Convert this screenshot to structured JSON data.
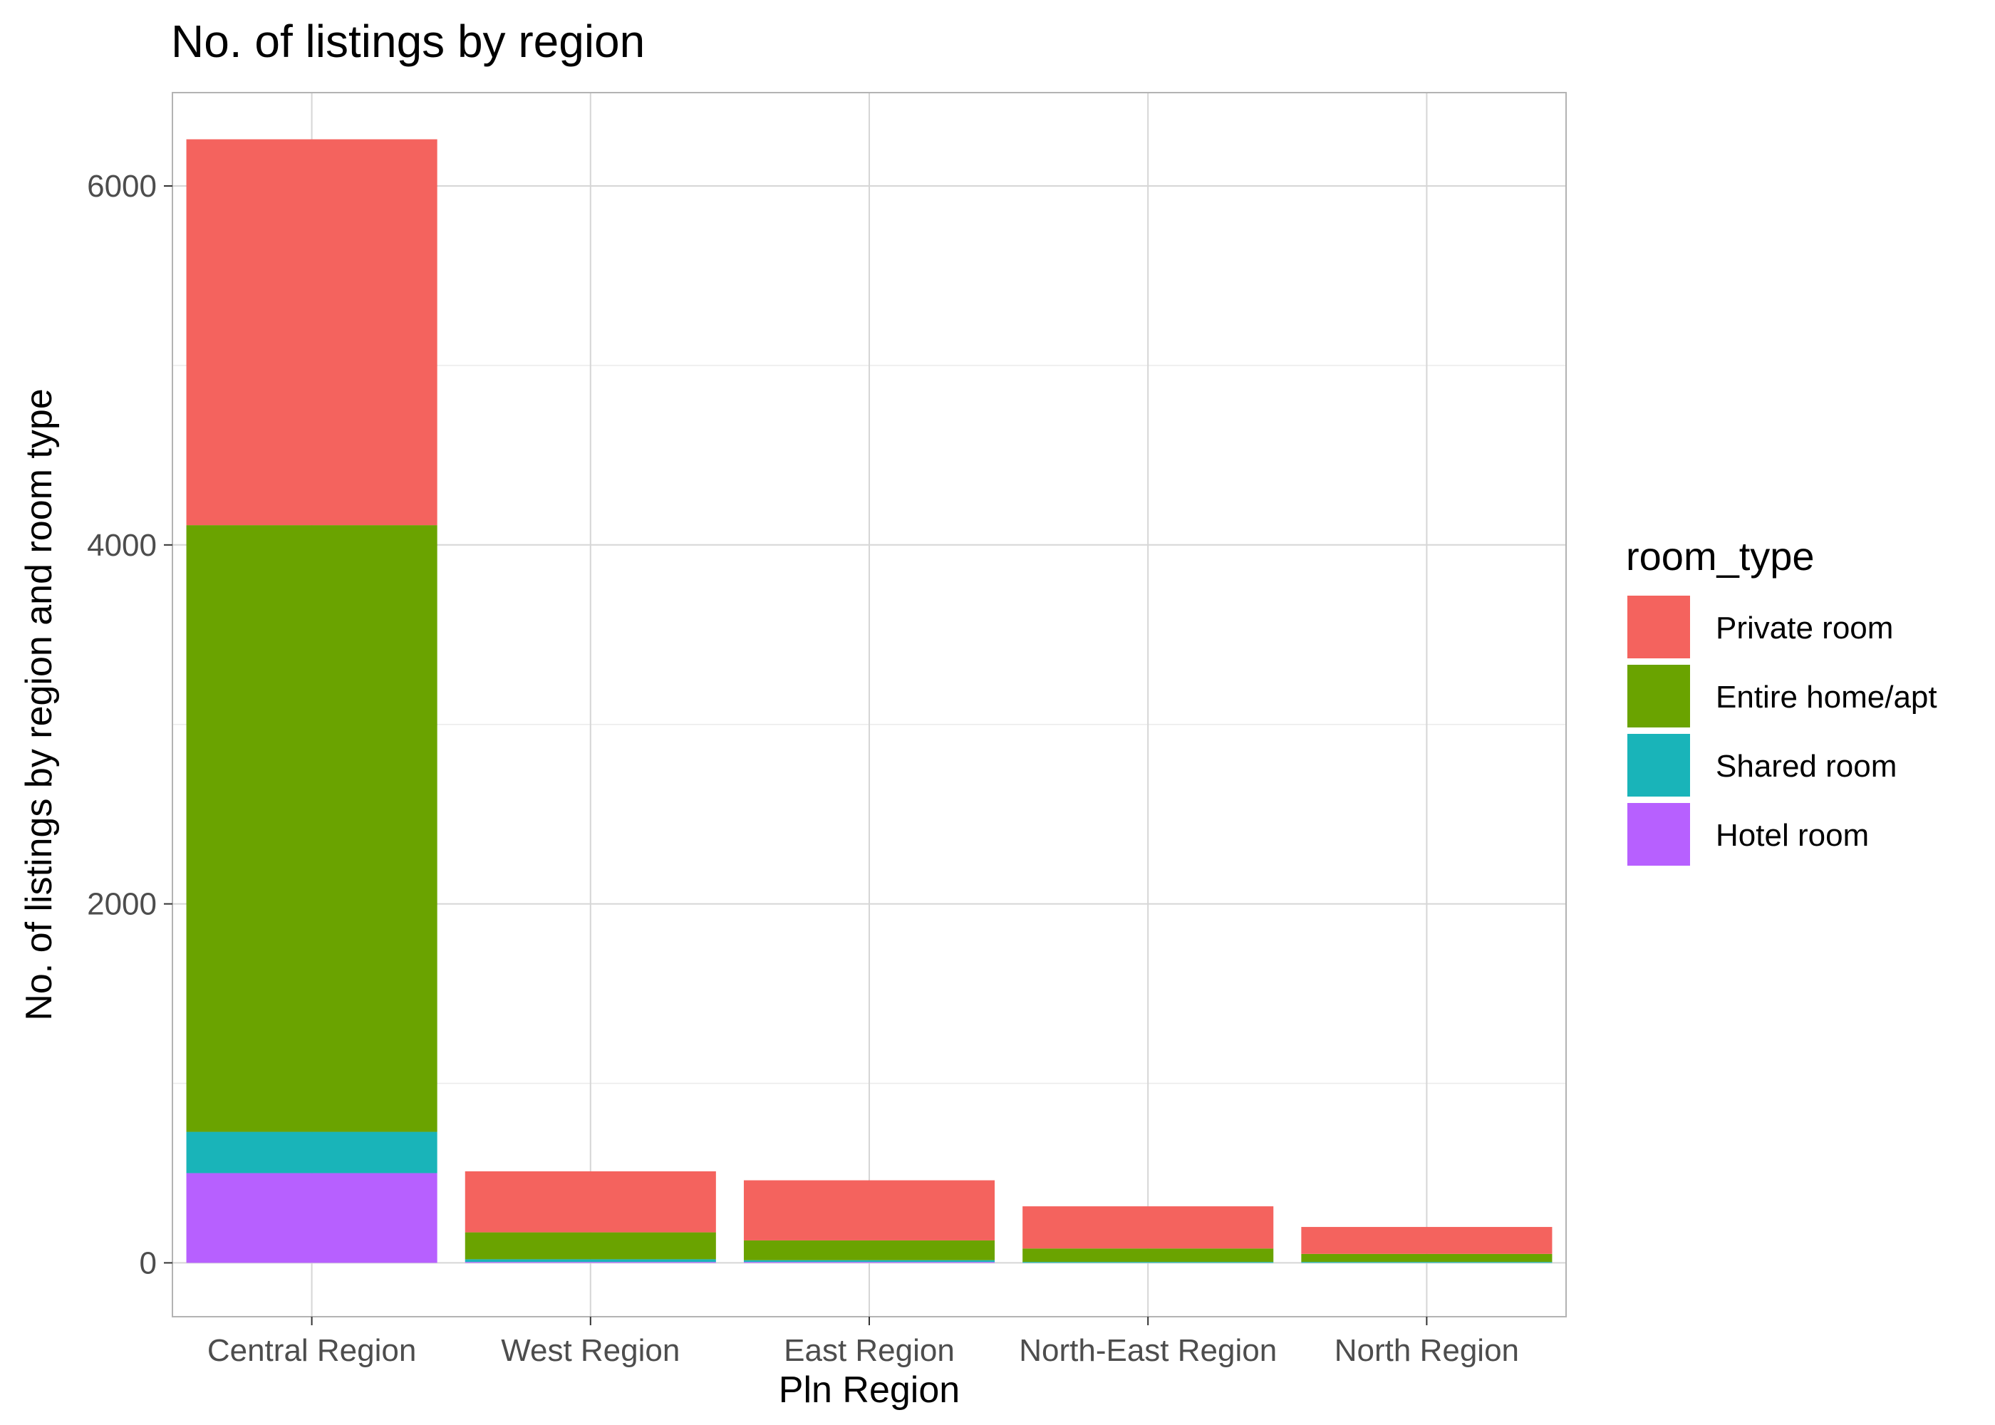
{
  "chart_data": {
    "type": "bar",
    "stacked": true,
    "title": "No. of listings by region",
    "xlabel": "Pln Region",
    "ylabel": "No. of listings by region and room type",
    "categories": [
      "Central Region",
      "West Region",
      "East Region",
      "North-East Region",
      "North Region"
    ],
    "ylim": [
      -300,
      6520
    ],
    "yticks": [
      0,
      2000,
      4000,
      6000
    ],
    "grid": true,
    "legend": {
      "title": "room_type",
      "placement": "right"
    },
    "series": [
      {
        "name": "Hotel room",
        "color": "#B760FF",
        "values": [
          500,
          5,
          5,
          0,
          0
        ]
      },
      {
        "name": "Shared room",
        "color": "#19B4B9",
        "values": [
          230,
          15,
          10,
          5,
          5
        ]
      },
      {
        "name": "Entire home/apt",
        "color": "#6AA300",
        "values": [
          3380,
          150,
          110,
          75,
          45
        ]
      },
      {
        "name": "Private room",
        "color": "#F4635E",
        "values": [
          2150,
          340,
          335,
          235,
          150
        ]
      }
    ],
    "legend_order": [
      "Private room",
      "Entire home/apt",
      "Shared room",
      "Hotel room"
    ]
  }
}
